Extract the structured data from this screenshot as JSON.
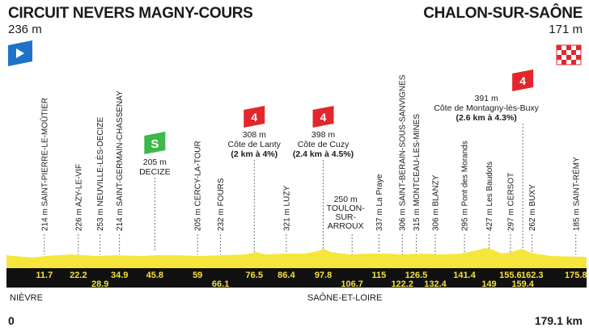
{
  "header": {
    "start_name": "CIRCUIT NEVERS MAGNY-COURS",
    "start_altitude": "236 m",
    "finish_name": "CHALON-SUR-SAÔNE",
    "finish_altitude": "171 m"
  },
  "waypoints": [
    {
      "label": "214 m SAINT-PIERRE-LE-MOÛTIER",
      "km": "11.7",
      "km_row": "top"
    },
    {
      "label": "226 m AZY-LE-VIF",
      "km": "22.2",
      "km_row": "top"
    },
    {
      "label": "253 m NEUVILLE-LÈS-DECIZE",
      "km": "28.9",
      "km_row": "bottom"
    },
    {
      "label": "214 m SAINT-GERMAIN-CHASSENAY",
      "km": "34.9",
      "km_row": "top"
    },
    {
      "label": "205 m CERCY-LA-TOUR",
      "km": "59",
      "km_row": "top"
    },
    {
      "label": "232 m FOURS",
      "km": "66.1",
      "km_row": "bottom"
    },
    {
      "label": "321 m LUZY",
      "km": "86.4",
      "km_row": "top"
    },
    {
      "label": "337 m La Praye",
      "km": "115",
      "km_row": "top"
    },
    {
      "label": "306 m SAINT-BERAIN-SOUS-SANVIGNES",
      "km": "122.2",
      "km_row": "bottom"
    },
    {
      "label": "315 m MONTCEAU-LES-MINES",
      "km": "126.5",
      "km_row": "top"
    },
    {
      "label": "306 m BLANZY",
      "km": "132.4",
      "km_row": "bottom"
    },
    {
      "label": "295 m Pont des Morands",
      "km": "141.4",
      "km_row": "top"
    },
    {
      "label": "427 m Les Baudots",
      "km": "149",
      "km_row": "bottom"
    },
    {
      "label": "297 m CERSOT",
      "km": "155.6",
      "km_row": "top"
    },
    {
      "label": "262 m BUXY",
      "km": "162.3",
      "km_row": "top"
    },
    {
      "label": "185 m SAINT-RÉMY",
      "km": "175.8",
      "km_row": "top"
    }
  ],
  "other_km": [
    {
      "km": "45.8",
      "km_row": "top"
    },
    {
      "km": "76.5",
      "km_row": "top"
    },
    {
      "km": "97.8",
      "km_row": "top"
    },
    {
      "km": "106.7",
      "km_row": "bottom"
    },
    {
      "km": "159.4",
      "km_row": "bottom"
    }
  ],
  "sprint": {
    "category": "S",
    "altitude": "205 m",
    "name": "DECIZE",
    "km": "45.8"
  },
  "climbs": [
    {
      "category": "4",
      "altitude": "308 m",
      "name": "Côte de Lanty",
      "detail": "(2 km à 4%)",
      "km": "76.5"
    },
    {
      "category": "4",
      "altitude": "398 m",
      "name": "Côte de Cuzy",
      "detail": "(2.4 km à 4.5%)",
      "km": "97.8"
    },
    {
      "category": "4",
      "altitude": "391 m",
      "name": "Côte de Montagny-lès-Buxy",
      "detail": "(2.6 km à 4.3%)",
      "km": "159.4"
    }
  ],
  "toulon": {
    "altitude": "250 m",
    "line1": "TOULON-",
    "line2": "SUR-",
    "line3": "ARROUX",
    "km": "106.7"
  },
  "regions": {
    "left": "NIÈVRE",
    "middle": "SAÔNE-ET-LOIRE"
  },
  "distance": {
    "start": "0",
    "end": "179.1 km"
  },
  "colors": {
    "profile_fill": "#f5e63c",
    "bar": "#111111",
    "km_text": "#f2e23c",
    "sprint": "#3db84a",
    "climb": "#e3262b",
    "start_flag": "#1e73c8"
  },
  "icons": {
    "start": "start-flag-icon",
    "finish": "checkered-flag-icon"
  }
}
